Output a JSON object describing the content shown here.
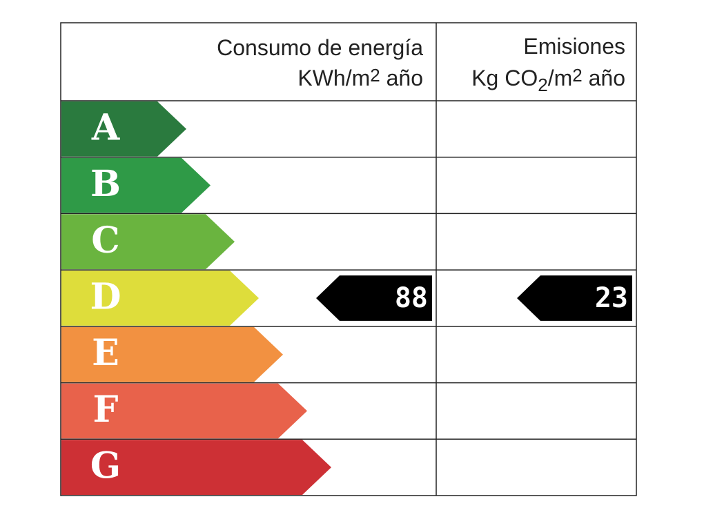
{
  "header": {
    "energy": {
      "title": "Consumo de energía",
      "unit": [
        "KWh/m",
        "2",
        " año"
      ]
    },
    "emissions": {
      "title": "Emisiones",
      "unit": [
        "Kg CO",
        "2",
        "/m",
        "2",
        " año"
      ]
    }
  },
  "ratings": [
    {
      "letter": "A",
      "color": "#2a7a3e"
    },
    {
      "letter": "B",
      "color": "#2f9a47"
    },
    {
      "letter": "C",
      "color": "#6ab43f"
    },
    {
      "letter": "D",
      "color": "#dedd3b"
    },
    {
      "letter": "E",
      "color": "#f29141"
    },
    {
      "letter": "F",
      "color": "#e8624b"
    },
    {
      "letter": "G",
      "color": "#cd3035"
    }
  ],
  "energy": {
    "class": "D",
    "value": 88
  },
  "emissions": {
    "class": "D",
    "value": 23
  }
}
